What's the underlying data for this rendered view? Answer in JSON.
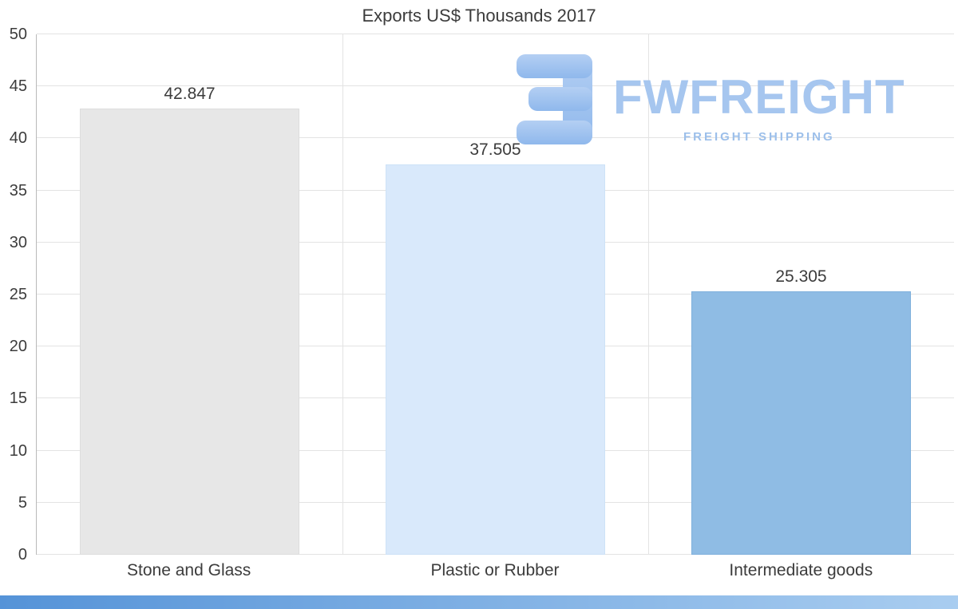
{
  "logo": {
    "wordmark": "FWFREIGHT",
    "tagline": "FREIGHT SHIPPING",
    "wordmark_color": "#a6c6ef",
    "tagline_color": "#9cbfea"
  },
  "footer": {
    "accent_colors": [
      "#5593d8",
      "#a9cdf0"
    ]
  },
  "chart_data": {
    "type": "bar",
    "title": "Exports US$ Thousands 2017",
    "categories": [
      "Stone and Glass",
      "Plastic or Rubber",
      "Intermediate goods"
    ],
    "values": [
      42.847,
      37.505,
      25.305
    ],
    "value_labels": [
      "42.847",
      "37.505",
      "25.305"
    ],
    "xlabel": "",
    "ylabel": "",
    "ylim": [
      0,
      50
    ],
    "ytick_step": 5,
    "grid": true,
    "legend": false,
    "bar_colors": [
      "#e7e7e7",
      "#d9e9fb",
      "#8fbce4"
    ],
    "bar_border_colors": [
      "#dddddd",
      "#cde2f7",
      "#7fb0dc"
    ]
  }
}
